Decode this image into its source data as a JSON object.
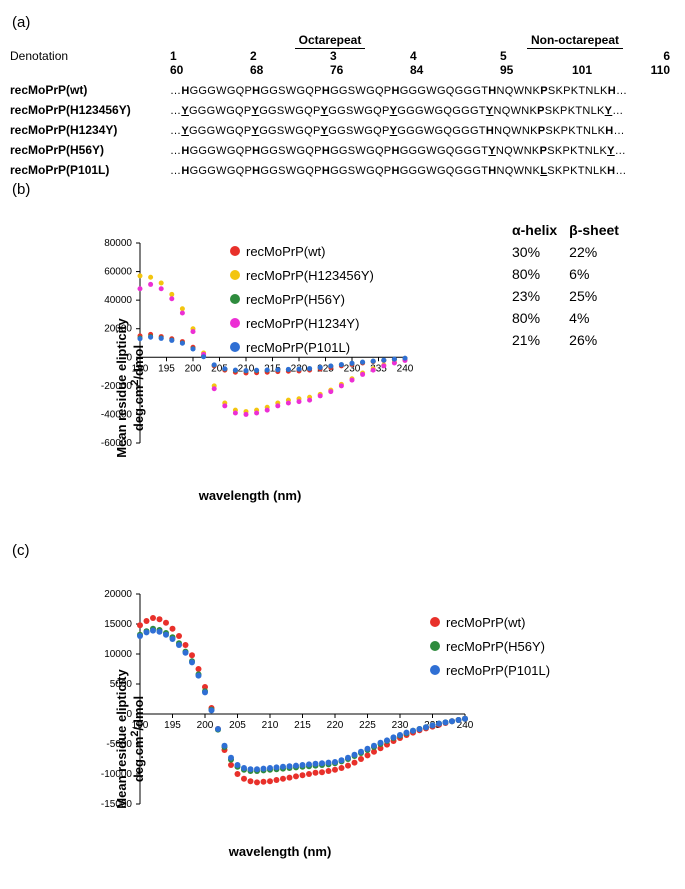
{
  "panel_a": {
    "label": "(a)",
    "region_octa": "Octarepeat",
    "region_non": "Non-octarepeat",
    "denotation_label": "Denotation",
    "oct_numbers": [
      "1",
      "2",
      "3",
      "4"
    ],
    "non_numbers": [
      "5",
      "",
      "6"
    ],
    "oct_positions": [
      "60",
      "68",
      "76",
      "84"
    ],
    "non_positions": [
      "95",
      "101",
      "110"
    ],
    "rows": [
      {
        "name": "recMoPrP(wt)",
        "seq": "…<b>H</b>GGGWGQP<b>H</b>GGSWGQP<b>H</b>GGSWGQP<b>H</b>GGGWGQGGGT<b>H</b>NQWNK<b>P</b>SKPKTNLK<b>H</b>…"
      },
      {
        "name": "recMoPrP(H123456Y)",
        "seq": "…<u>Y</u>GGGWGQP<u>Y</u>GGSWGQP<u>Y</u>GGSWGQP<u>Y</u>GGGWGQGGGT<u>Y</u>NQWNK<b>P</b>SKPKTNLK<u>Y</u>…"
      },
      {
        "name": "recMoPrP(H1234Y)",
        "seq": "…<u>Y</u>GGGWGQP<u>Y</u>GGSWGQP<u>Y</u>GGSWGQP<u>Y</u>GGGWGQGGGT<b>H</b>NQWNK<b>P</b>SKPKTNLK<b>H</b>…"
      },
      {
        "name": "recMoPrP(H56Y)",
        "seq": "…<b>H</b>GGGWGQP<b>H</b>GGSWGQP<b>H</b>GGSWGQP<b>H</b>GGGWGQGGGT<u>Y</u>NQWNK<b>P</b>SKPKTNLK<u>Y</u>…"
      },
      {
        "name": "recMoPrP(P101L)",
        "seq": "…<b>H</b>GGGWGQP<b>H</b>GGSWGQP<b>H</b>GGSWGQP<b>H</b>GGGWGQGGGT<b>H</b>NQWNK<u>L</u>SKPKTNLK<b>H</b>…"
      }
    ]
  },
  "panel_b": {
    "label": "(b)",
    "type": "scatter",
    "xlabel": "wavelength (nm)",
    "ylabel": "Mean residue elipticity\ndeg.cm²/dmol",
    "xlim": [
      190,
      240
    ],
    "ylim": [
      -60000,
      80000
    ],
    "xticks": [
      190,
      195,
      200,
      205,
      210,
      215,
      220,
      225,
      230,
      235,
      240
    ],
    "yticks": [
      -60000,
      -40000,
      -20000,
      0,
      20000,
      40000,
      60000,
      80000
    ],
    "marker_size": 2.5,
    "background_color": "#ffffff",
    "axis_color": "#000000",
    "series": [
      {
        "name": "recMoPrP(wt)",
        "color": "#e8302a",
        "alpha": "30%",
        "beta": "22%",
        "x": [
          190,
          192,
          194,
          196,
          198,
          200,
          202,
          204,
          206,
          208,
          210,
          212,
          214,
          216,
          218,
          220,
          222,
          224,
          226,
          228,
          230,
          232,
          234,
          236,
          238,
          240
        ],
        "y": [
          15000,
          16000,
          14500,
          13000,
          11000,
          7000,
          1000,
          -6000,
          -9000,
          -10500,
          -11000,
          -10800,
          -10500,
          -10000,
          -9800,
          -9600,
          -9000,
          -8200,
          -7200,
          -6000,
          -5000,
          -4000,
          -3000,
          -2200,
          -1500,
          -800
        ]
      },
      {
        "name": "recMoPrP(H123456Y)",
        "color": "#f3c50f",
        "alpha": "80%",
        "beta": "6%",
        "x": [
          190,
          192,
          194,
          196,
          198,
          200,
          202,
          204,
          206,
          208,
          210,
          212,
          214,
          216,
          218,
          220,
          222,
          224,
          226,
          228,
          230,
          232,
          234,
          236,
          238,
          240
        ],
        "y": [
          57000,
          56000,
          52000,
          44000,
          34000,
          20000,
          3000,
          -20000,
          -32000,
          -37000,
          -38000,
          -37000,
          -35000,
          -32000,
          -30000,
          -29000,
          -28000,
          -26000,
          -23000,
          -19000,
          -15000,
          -11000,
          -8000,
          -5500,
          -3500,
          -2000
        ]
      },
      {
        "name": "recMoPrP(H56Y)",
        "color": "#2e8b3d",
        "alpha": "23%",
        "beta": "25%",
        "x": [
          190,
          192,
          194,
          196,
          198,
          200,
          202,
          204,
          206,
          208,
          210,
          212,
          214,
          216,
          218,
          220,
          222,
          224,
          226,
          228,
          230,
          232,
          234,
          236,
          238,
          240
        ],
        "y": [
          13500,
          14500,
          13500,
          12000,
          10000,
          6000,
          500,
          -5500,
          -8200,
          -9200,
          -9500,
          -9300,
          -9100,
          -8800,
          -8600,
          -8400,
          -8000,
          -7200,
          -6200,
          -5200,
          -4300,
          -3500,
          -2800,
          -2100,
          -1400,
          -800
        ]
      },
      {
        "name": "recMoPrP(H1234Y)",
        "color": "#ec2fd4",
        "alpha": "80%",
        "beta": "4%",
        "x": [
          190,
          192,
          194,
          196,
          198,
          200,
          202,
          204,
          206,
          208,
          210,
          212,
          214,
          216,
          218,
          220,
          222,
          224,
          226,
          228,
          230,
          232,
          234,
          236,
          238,
          240
        ],
        "y": [
          48000,
          51000,
          48000,
          41000,
          31000,
          18000,
          2000,
          -22000,
          -34000,
          -39000,
          -40000,
          -39000,
          -37000,
          -34000,
          -32000,
          -31000,
          -30000,
          -27000,
          -24000,
          -20000,
          -16000,
          -12000,
          -9000,
          -6000,
          -4000,
          -2200
        ]
      },
      {
        "name": "recMoPrP(P101L)",
        "color": "#2f6fd4",
        "alpha": "21%",
        "beta": "26%",
        "x": [
          190,
          192,
          194,
          196,
          198,
          200,
          202,
          204,
          206,
          208,
          210,
          212,
          214,
          216,
          218,
          220,
          222,
          224,
          226,
          228,
          230,
          232,
          234,
          236,
          238,
          240
        ],
        "y": [
          13000,
          14000,
          13200,
          11800,
          9800,
          5800,
          400,
          -5300,
          -8000,
          -9000,
          -9300,
          -9100,
          -8900,
          -8700,
          -8500,
          -8300,
          -7900,
          -7100,
          -6100,
          -5100,
          -4200,
          -3400,
          -2700,
          -2000,
          -1300,
          -700
        ]
      }
    ],
    "struct_headers": {
      "a": "α-helix",
      "b": "β-sheet"
    }
  },
  "panel_c": {
    "label": "(c)",
    "type": "scatter",
    "xlabel": "wavelength (nm)",
    "ylabel": "Mean residue elipticity\ndeg.cm²/dmol",
    "xlim": [
      190,
      240
    ],
    "ylim": [
      -15000,
      20000
    ],
    "xticks": [
      190,
      195,
      200,
      205,
      210,
      215,
      220,
      225,
      230,
      235,
      240
    ],
    "yticks": [
      -15000,
      -10000,
      -5000,
      0,
      5000,
      10000,
      15000,
      20000
    ],
    "marker_size": 3,
    "background_color": "#ffffff",
    "axis_color": "#000000",
    "series": [
      {
        "name": "recMoPrP(wt)",
        "color": "#e8302a",
        "x": [
          190,
          191,
          192,
          193,
          194,
          195,
          196,
          197,
          198,
          199,
          200,
          201,
          202,
          203,
          204,
          205,
          206,
          207,
          208,
          209,
          210,
          211,
          212,
          213,
          214,
          215,
          216,
          217,
          218,
          219,
          220,
          221,
          222,
          223,
          224,
          225,
          226,
          227,
          228,
          229,
          230,
          231,
          232,
          233,
          234,
          235,
          236,
          237,
          238,
          239,
          240
        ],
        "y": [
          14800,
          15500,
          16000,
          15800,
          15200,
          14200,
          13000,
          11500,
          9800,
          7500,
          4500,
          1000,
          -2500,
          -6000,
          -8500,
          -10000,
          -10800,
          -11200,
          -11400,
          -11300,
          -11200,
          -11000,
          -10800,
          -10600,
          -10400,
          -10200,
          -10000,
          -9800,
          -9700,
          -9500,
          -9300,
          -9000,
          -8600,
          -8100,
          -7500,
          -6900,
          -6300,
          -5700,
          -5100,
          -4500,
          -4000,
          -3500,
          -3100,
          -2700,
          -2400,
          -2100,
          -1800,
          -1500,
          -1200,
          -1000,
          -800
        ]
      },
      {
        "name": "recMoPrP(H56Y)",
        "color": "#2e8b3d",
        "x": [
          190,
          191,
          192,
          193,
          194,
          195,
          196,
          197,
          198,
          199,
          200,
          201,
          202,
          203,
          204,
          205,
          206,
          207,
          208,
          209,
          210,
          211,
          212,
          213,
          214,
          215,
          216,
          217,
          218,
          219,
          220,
          221,
          222,
          223,
          224,
          225,
          226,
          227,
          228,
          229,
          230,
          231,
          232,
          233,
          234,
          235,
          236,
          237,
          238,
          239,
          240
        ],
        "y": [
          13200,
          13800,
          14200,
          14000,
          13500,
          12800,
          11800,
          10400,
          8800,
          6600,
          3800,
          700,
          -2600,
          -5500,
          -7600,
          -8800,
          -9300,
          -9500,
          -9500,
          -9400,
          -9300,
          -9200,
          -9100,
          -9000,
          -8900,
          -8800,
          -8700,
          -8600,
          -8500,
          -8400,
          -8200,
          -7900,
          -7500,
          -7000,
          -6500,
          -6000,
          -5500,
          -5000,
          -4500,
          -4000,
          -3600,
          -3200,
          -2800,
          -2500,
          -2200,
          -1900,
          -1600,
          -1400,
          -1200,
          -1000,
          -800
        ]
      },
      {
        "name": "recMoPrP(P101L)",
        "color": "#2f6fd4",
        "x": [
          190,
          191,
          192,
          193,
          194,
          195,
          196,
          197,
          198,
          199,
          200,
          201,
          202,
          203,
          204,
          205,
          206,
          207,
          208,
          209,
          210,
          211,
          212,
          213,
          214,
          215,
          216,
          217,
          218,
          219,
          220,
          221,
          222,
          223,
          224,
          225,
          226,
          227,
          228,
          229,
          230,
          231,
          232,
          233,
          234,
          235,
          236,
          237,
          238,
          239,
          240
        ],
        "y": [
          13000,
          13600,
          13900,
          13700,
          13200,
          12500,
          11500,
          10200,
          8600,
          6400,
          3600,
          600,
          -2500,
          -5300,
          -7300,
          -8500,
          -9000,
          -9200,
          -9200,
          -9100,
          -9000,
          -8900,
          -8800,
          -8700,
          -8600,
          -8500,
          -8400,
          -8300,
          -8200,
          -8100,
          -8000,
          -7700,
          -7300,
          -6800,
          -6300,
          -5800,
          -5300,
          -4800,
          -4400,
          -3900,
          -3500,
          -3100,
          -2800,
          -2500,
          -2200,
          -1900,
          -1600,
          -1400,
          -1200,
          -1000,
          -800
        ]
      }
    ]
  }
}
